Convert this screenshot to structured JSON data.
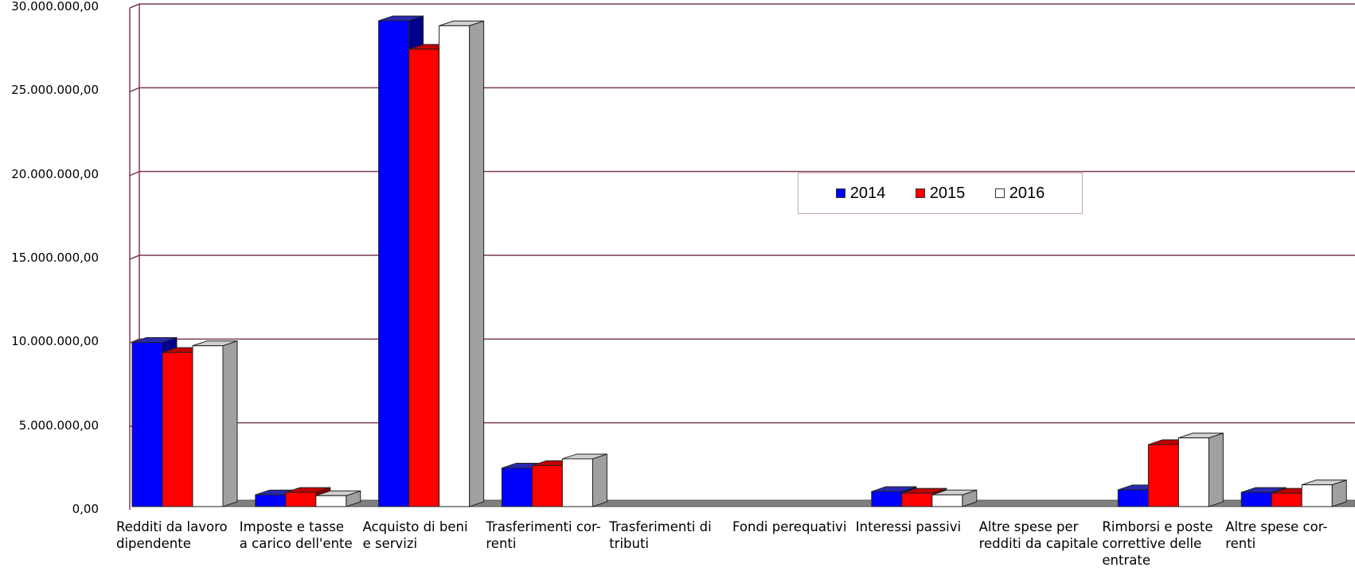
{
  "chart_data": {
    "type": "bar",
    "style": "3d-clustered-column",
    "title": "",
    "xlabel": "",
    "ylabel": "",
    "ylim": [
      0,
      30000000
    ],
    "yticks": [
      "0,00",
      "5.000.000,00",
      "10.000.000,00",
      "15.000.000,00",
      "20.000.000,00",
      "25.000.000,00",
      "30.000.000,00"
    ],
    "grid": true,
    "legend_position": "center-right",
    "categories": [
      "Redditi da lavoro\ndipendente",
      "Imposte e tasse\na carico dell'ente",
      "Acquisto di beni\ne servizi",
      "Trasferimenti cor-\nrenti",
      "Trasferimenti di\ntributi",
      "Fondi perequativi",
      "Interessi passivi",
      "Altre spese per\nredditi da capitale",
      "Rimborsi e poste\ncorrettive delle\nentrate",
      "Altre spese cor-\nrenti"
    ],
    "series": [
      {
        "name": "2014",
        "color": "#0000ff",
        "values": [
          9800000,
          700000,
          29000000,
          2300000,
          0,
          0,
          900000,
          0,
          1000000,
          850000
        ]
      },
      {
        "name": "2015",
        "color": "#ff0000",
        "values": [
          9200000,
          850000,
          27300000,
          2450000,
          0,
          0,
          800000,
          0,
          3700000,
          800000
        ]
      },
      {
        "name": "2016",
        "color": "#ffffff",
        "values": [
          9600000,
          650000,
          28700000,
          2850000,
          0,
          0,
          700000,
          0,
          4100000,
          1300000
        ]
      }
    ]
  }
}
